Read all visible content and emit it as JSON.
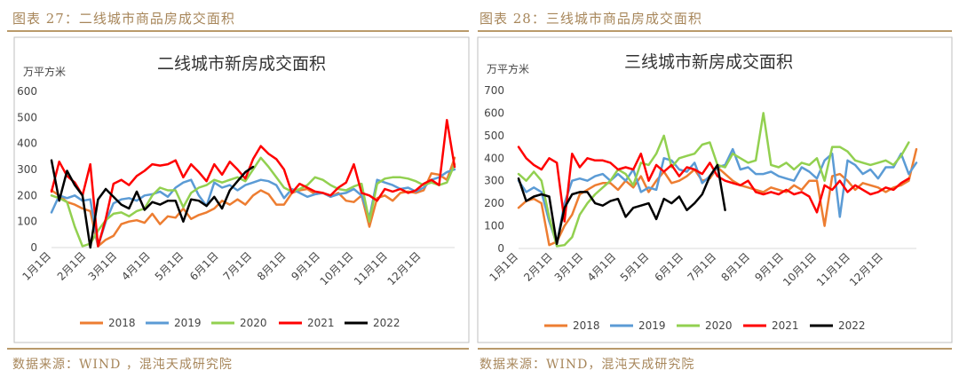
{
  "left_panel": {
    "caption": "图表 27：二线城市商品房成交面积",
    "source": "数据来源：WIND ，混沌天成研究院"
  },
  "right_panel": {
    "caption": "图表 28：三线城市商品房成交面积",
    "source": "数据来源：WIND，混沌天成研究院"
  },
  "colors": {
    "2018": "#ed7d31",
    "2019": "#5b9bd5",
    "2020": "#92d050",
    "2021": "#ff0000",
    "2022": "#000000",
    "frame": "#bfbfbf",
    "caption": "#a7865a"
  },
  "chart_data": [
    {
      "type": "line",
      "title": "二线城市新房成交面积",
      "ylabel": "万平方米",
      "xlabel": "",
      "ylim": [
        0,
        600
      ],
      "yticks": [
        0,
        100,
        200,
        300,
        400,
        500,
        600
      ],
      "xlim": [
        1,
        53
      ],
      "xticks": [
        {
          "label": "1月1日",
          "week": 1
        },
        {
          "label": "2月1日",
          "week": 5.5
        },
        {
          "label": "3月1日",
          "week": 9.5
        },
        {
          "label": "4月1日",
          "week": 13.8
        },
        {
          "label": "5月1日",
          "week": 18.1
        },
        {
          "label": "6月1日",
          "week": 22.6
        },
        {
          "label": "7月1日",
          "week": 26.9
        },
        {
          "label": "8月1日",
          "week": 31.3
        },
        {
          "label": "9月1日",
          "week": 35.7
        },
        {
          "label": "10月1日",
          "week": 40.0
        },
        {
          "label": "11月1日",
          "week": 44.4
        },
        {
          "label": "12月1日",
          "week": 48.7
        }
      ],
      "grid": false,
      "legend": "bottom",
      "series": [
        {
          "name": "2018",
          "values": [
            220,
            200,
            175,
            165,
            150,
            140,
            5,
            30,
            45,
            90,
            100,
            105,
            95,
            130,
            90,
            120,
            115,
            150,
            110,
            125,
            135,
            150,
            180,
            165,
            185,
            165,
            200,
            220,
            205,
            165,
            165,
            210,
            220,
            225,
            205,
            210,
            195,
            210,
            180,
            175,
            200,
            80,
            190,
            200,
            180,
            210,
            215,
            210,
            220,
            285,
            280,
            260,
            345
          ]
        },
        {
          "name": "2019",
          "values": [
            135,
            200,
            190,
            200,
            180,
            185,
            5,
            100,
            170,
            185,
            190,
            180,
            200,
            205,
            215,
            195,
            230,
            250,
            260,
            200,
            160,
            250,
            230,
            240,
            220,
            240,
            250,
            260,
            255,
            240,
            190,
            225,
            210,
            195,
            205,
            210,
            195,
            205,
            210,
            225,
            200,
            115,
            260,
            250,
            240,
            225,
            230,
            215,
            230,
            260,
            270,
            290,
            300
          ]
        },
        {
          "name": "2020",
          "values": [
            200,
            190,
            175,
            80,
            5,
            15,
            65,
            105,
            130,
            135,
            120,
            140,
            150,
            200,
            230,
            220,
            220,
            155,
            210,
            230,
            240,
            260,
            250,
            260,
            270,
            255,
            300,
            345,
            310,
            270,
            230,
            215,
            225,
            240,
            270,
            260,
            240,
            225,
            220,
            235,
            245,
            100,
            245,
            265,
            270,
            270,
            265,
            255,
            240,
            250,
            240,
            250,
            320
          ]
        },
        {
          "name": "2021",
          "values": [
            215,
            330,
            275,
            250,
            200,
            320,
            5,
            110,
            245,
            260,
            240,
            275,
            295,
            320,
            315,
            320,
            335,
            270,
            320,
            290,
            255,
            320,
            280,
            330,
            300,
            265,
            340,
            390,
            360,
            340,
            300,
            210,
            245,
            230,
            215,
            210,
            200,
            230,
            250,
            320,
            210,
            200,
            180,
            225,
            215,
            225,
            210,
            220,
            245,
            260,
            240,
            490,
            310
          ]
        },
        {
          "name": "2022",
          "values": [
            335,
            180,
            295,
            240,
            200,
            0,
            185,
            225,
            195,
            165,
            150,
            215,
            145,
            175,
            165,
            180,
            180,
            100,
            185,
            180,
            160,
            195,
            150,
            220,
            255,
            290,
            310
          ]
        }
      ]
    },
    {
      "type": "line",
      "title": "三线城市新房成交面积",
      "ylabel": "万平方米",
      "xlabel": "",
      "ylim": [
        0,
        700
      ],
      "yticks": [
        0,
        100,
        200,
        300,
        400,
        500,
        600,
        700
      ],
      "xlim": [
        1,
        53
      ],
      "xticks": [
        {
          "label": "1月1日",
          "week": 1
        },
        {
          "label": "2月1日",
          "week": 5.5
        },
        {
          "label": "3月1日",
          "week": 9.5
        },
        {
          "label": "4月1日",
          "week": 13.8
        },
        {
          "label": "5月1日",
          "week": 18.1
        },
        {
          "label": "6月1日",
          "week": 22.6
        },
        {
          "label": "7月1日",
          "week": 26.9
        },
        {
          "label": "8月1日",
          "week": 31.3
        },
        {
          "label": "9月1日",
          "week": 35.7
        },
        {
          "label": "10月1日",
          "week": 40.0
        },
        {
          "label": "11月1日",
          "week": 44.4
        },
        {
          "label": "12月1日",
          "week": 48.7
        }
      ],
      "grid": false,
      "legend": "bottom",
      "series": [
        {
          "name": "2018",
          "values": [
            180,
            210,
            220,
            200,
            15,
            30,
            100,
            150,
            240,
            260,
            280,
            290,
            290,
            260,
            300,
            270,
            320,
            250,
            300,
            340,
            290,
            300,
            320,
            350,
            300,
            310,
            360,
            330,
            300,
            280,
            270,
            260,
            250,
            270,
            260,
            250,
            280,
            260,
            300,
            300,
            100,
            320,
            330,
            300,
            260,
            290,
            280,
            270,
            250,
            270,
            280,
            300,
            440
          ]
        },
        {
          "name": "2019",
          "values": [
            300,
            250,
            270,
            250,
            120,
            20,
            200,
            300,
            310,
            300,
            320,
            330,
            300,
            330,
            300,
            350,
            250,
            270,
            260,
            400,
            390,
            350,
            340,
            380,
            290,
            320,
            360,
            370,
            440,
            350,
            360,
            330,
            330,
            340,
            320,
            310,
            300,
            360,
            340,
            310,
            390,
            420,
            140,
            390,
            370,
            330,
            350,
            310,
            360,
            360,
            420,
            330,
            380
          ]
        },
        {
          "name": "2020",
          "values": [
            330,
            300,
            340,
            300,
            140,
            10,
            15,
            50,
            150,
            200,
            240,
            270,
            300,
            350,
            330,
            280,
            380,
            370,
            420,
            500,
            360,
            400,
            410,
            420,
            460,
            470,
            370,
            360,
            420,
            400,
            380,
            390,
            600,
            370,
            360,
            380,
            350,
            380,
            370,
            400,
            300,
            450,
            450,
            430,
            390,
            380,
            370,
            380,
            390,
            370,
            410,
            470
          ]
        },
        {
          "name": "2021",
          "values": [
            450,
            400,
            370,
            350,
            400,
            380,
            120,
            420,
            360,
            400,
            390,
            390,
            380,
            350,
            360,
            350,
            420,
            300,
            370,
            340,
            370,
            320,
            360,
            350,
            330,
            380,
            320,
            300,
            290,
            280,
            300,
            250,
            240,
            250,
            240,
            260,
            240,
            250,
            230,
            160,
            280,
            260,
            300,
            250,
            280,
            260,
            240,
            250,
            270,
            260,
            290,
            310
          ]
        },
        {
          "name": "2022",
          "values": [
            310,
            210,
            230,
            240,
            230,
            20,
            180,
            240,
            250,
            250,
            200,
            190,
            210,
            220,
            140,
            180,
            190,
            200,
            130,
            220,
            200,
            230,
            170,
            200,
            240,
            320,
            370,
            170
          ]
        }
      ]
    }
  ]
}
